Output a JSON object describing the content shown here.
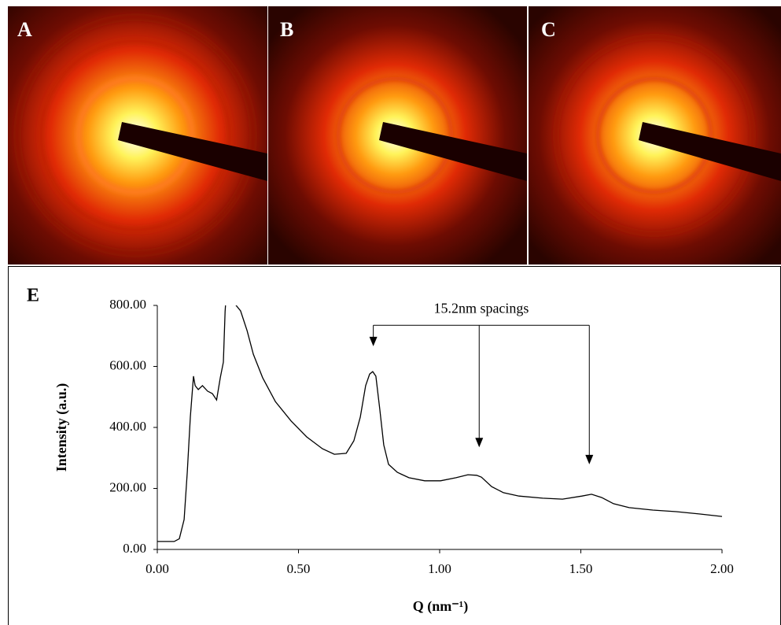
{
  "panels": [
    {
      "label": "A"
    },
    {
      "label": "B"
    },
    {
      "label": "C"
    }
  ],
  "chart_data": {
    "type": "line",
    "panel_label": "E",
    "xlabel": "Q (nm⁻¹)",
    "ylabel": "Intensity (a.u.)",
    "annotation": {
      "text": "15.2nm spacings",
      "bracket_y": 735,
      "arrows": [
        {
          "x": 0.765,
          "y": 666
        },
        {
          "x": 1.14,
          "y": 335
        },
        {
          "x": 1.53,
          "y": 279
        }
      ]
    },
    "color": "#000000",
    "x": [
      0,
      0.06,
      0.078,
      0.095,
      0.106,
      0.117,
      0.128,
      0.134,
      0.145,
      0.16,
      0.178,
      0.195,
      0.21,
      0.223,
      0.234,
      0.24,
      0.245,
      0.26,
      0.275,
      0.279,
      0.295,
      0.318,
      0.34,
      0.373,
      0.418,
      0.474,
      0.529,
      0.585,
      0.627,
      0.669,
      0.696,
      0.719,
      0.738,
      0.752,
      0.763,
      0.774,
      0.788,
      0.802,
      0.819,
      0.85,
      0.891,
      0.947,
      1.003,
      1.058,
      1.1,
      1.131,
      1.148,
      1.184,
      1.226,
      1.281,
      1.365,
      1.435,
      1.504,
      1.538,
      1.574,
      1.616,
      1.671,
      1.755,
      1.838,
      1.922,
      2.0
    ],
    "values": [
      26,
      26,
      35,
      98,
      253,
      434,
      568,
      537,
      524,
      537,
      519,
      511,
      490,
      563,
      614,
      780,
      850,
      900,
      850,
      800,
      782,
      717,
      640,
      563,
      485,
      421,
      369,
      330,
      312,
      315,
      356,
      434,
      537,
      575,
      583,
      568,
      459,
      343,
      279,
      253,
      235,
      225,
      225,
      235,
      245,
      243,
      237,
      206,
      186,
      175,
      168,
      165,
      175,
      181,
      170,
      150,
      137,
      129,
      124,
      116,
      108
    ],
    "xlim": [
      0,
      2
    ],
    "ylim": [
      0,
      800
    ],
    "xticks": [
      {
        "value": 0,
        "label": "0.00"
      },
      {
        "value": 0.5,
        "label": "0.50"
      },
      {
        "value": 1,
        "label": "1.00"
      },
      {
        "value": 1.5,
        "label": "1.50"
      },
      {
        "value": 2,
        "label": "2.00"
      }
    ],
    "yticks": [
      {
        "value": 0,
        "label": "0.00"
      },
      {
        "value": 200,
        "label": "200.00"
      },
      {
        "value": 400,
        "label": "400.00"
      },
      {
        "value": 600,
        "label": "600.00"
      },
      {
        "value": 800,
        "label": "800.00"
      }
    ]
  }
}
